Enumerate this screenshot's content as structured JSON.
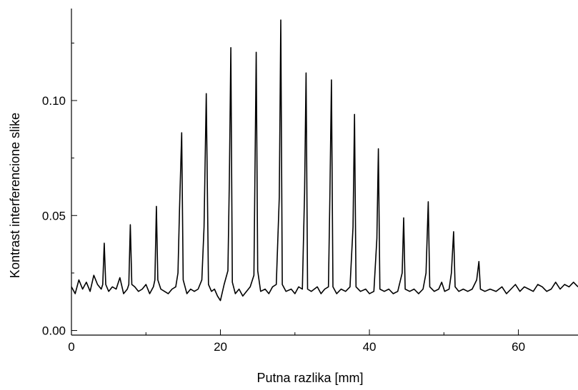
{
  "chart_data": {
    "type": "line",
    "title": "",
    "xlabel": "Putna razlika  [mm]",
    "ylabel": "Kontrast interferencione slike",
    "xlim": [
      0,
      68
    ],
    "ylim": [
      -0.002,
      0.14
    ],
    "xticks": [
      0,
      20,
      40,
      60
    ],
    "xtick_labels": [
      "0",
      "20",
      "40",
      "60"
    ],
    "yticks": [
      0.0,
      0.05,
      0.1
    ],
    "ytick_labels": [
      "0.00",
      "0.05",
      "0.10"
    ],
    "grid": false,
    "legend": "none",
    "line_color": "#000000",
    "series": [
      {
        "points": [
          [
            0.0,
            0.019
          ],
          [
            0.5,
            0.016
          ],
          [
            1.0,
            0.022
          ],
          [
            1.5,
            0.018
          ],
          [
            2.0,
            0.021
          ],
          [
            2.5,
            0.017
          ],
          [
            3.0,
            0.024
          ],
          [
            3.5,
            0.02
          ],
          [
            4.0,
            0.018
          ],
          [
            4.2,
            0.02
          ],
          [
            4.4,
            0.038
          ],
          [
            4.6,
            0.02
          ],
          [
            5.0,
            0.017
          ],
          [
            5.5,
            0.019
          ],
          [
            6.0,
            0.018
          ],
          [
            6.5,
            0.023
          ],
          [
            7.0,
            0.016
          ],
          [
            7.5,
            0.018
          ],
          [
            7.7,
            0.02
          ],
          [
            7.9,
            0.046
          ],
          [
            8.1,
            0.02
          ],
          [
            8.5,
            0.019
          ],
          [
            9.0,
            0.017
          ],
          [
            9.5,
            0.018
          ],
          [
            10.0,
            0.02
          ],
          [
            10.5,
            0.016
          ],
          [
            11.0,
            0.019
          ],
          [
            11.2,
            0.022
          ],
          [
            11.4,
            0.054
          ],
          [
            11.6,
            0.022
          ],
          [
            12.0,
            0.018
          ],
          [
            12.5,
            0.017
          ],
          [
            13.0,
            0.016
          ],
          [
            13.5,
            0.018
          ],
          [
            14.0,
            0.019
          ],
          [
            14.3,
            0.025
          ],
          [
            14.5,
            0.052
          ],
          [
            14.8,
            0.086
          ],
          [
            15.0,
            0.022
          ],
          [
            15.5,
            0.016
          ],
          [
            16.0,
            0.018
          ],
          [
            16.5,
            0.017
          ],
          [
            17.0,
            0.018
          ],
          [
            17.5,
            0.022
          ],
          [
            17.8,
            0.045
          ],
          [
            18.1,
            0.103
          ],
          [
            18.4,
            0.02
          ],
          [
            18.8,
            0.017
          ],
          [
            19.2,
            0.018
          ],
          [
            19.6,
            0.015
          ],
          [
            20.0,
            0.013
          ],
          [
            20.5,
            0.02
          ],
          [
            21.0,
            0.026
          ],
          [
            21.2,
            0.065
          ],
          [
            21.4,
            0.123
          ],
          [
            21.6,
            0.021
          ],
          [
            22.0,
            0.016
          ],
          [
            22.5,
            0.018
          ],
          [
            23.0,
            0.015
          ],
          [
            23.5,
            0.017
          ],
          [
            24.0,
            0.019
          ],
          [
            24.5,
            0.024
          ],
          [
            24.8,
            0.121
          ],
          [
            25.0,
            0.026
          ],
          [
            25.4,
            0.017
          ],
          [
            26.0,
            0.018
          ],
          [
            26.5,
            0.016
          ],
          [
            27.0,
            0.019
          ],
          [
            27.5,
            0.02
          ],
          [
            27.9,
            0.058
          ],
          [
            28.1,
            0.135
          ],
          [
            28.3,
            0.02
          ],
          [
            28.8,
            0.017
          ],
          [
            29.5,
            0.018
          ],
          [
            30.0,
            0.016
          ],
          [
            30.5,
            0.019
          ],
          [
            31.0,
            0.018
          ],
          [
            31.3,
            0.06
          ],
          [
            31.5,
            0.112
          ],
          [
            31.7,
            0.018
          ],
          [
            32.2,
            0.017
          ],
          [
            33.0,
            0.019
          ],
          [
            33.5,
            0.016
          ],
          [
            34.0,
            0.018
          ],
          [
            34.5,
            0.019
          ],
          [
            34.7,
            0.06
          ],
          [
            34.9,
            0.109
          ],
          [
            35.1,
            0.019
          ],
          [
            35.6,
            0.016
          ],
          [
            36.2,
            0.018
          ],
          [
            36.8,
            0.017
          ],
          [
            37.4,
            0.019
          ],
          [
            37.8,
            0.045
          ],
          [
            38.0,
            0.094
          ],
          [
            38.2,
            0.019
          ],
          [
            38.8,
            0.017
          ],
          [
            39.5,
            0.018
          ],
          [
            40.0,
            0.016
          ],
          [
            40.6,
            0.017
          ],
          [
            41.0,
            0.04
          ],
          [
            41.2,
            0.079
          ],
          [
            41.4,
            0.018
          ],
          [
            42.0,
            0.017
          ],
          [
            42.6,
            0.018
          ],
          [
            43.2,
            0.016
          ],
          [
            43.8,
            0.017
          ],
          [
            44.4,
            0.025
          ],
          [
            44.6,
            0.049
          ],
          [
            44.8,
            0.018
          ],
          [
            45.4,
            0.017
          ],
          [
            46.0,
            0.018
          ],
          [
            46.6,
            0.016
          ],
          [
            47.2,
            0.018
          ],
          [
            47.6,
            0.025
          ],
          [
            47.9,
            0.056
          ],
          [
            48.1,
            0.019
          ],
          [
            48.7,
            0.017
          ],
          [
            49.3,
            0.018
          ],
          [
            49.7,
            0.021
          ],
          [
            50.1,
            0.017
          ],
          [
            50.7,
            0.018
          ],
          [
            51.0,
            0.025
          ],
          [
            51.3,
            0.043
          ],
          [
            51.5,
            0.019
          ],
          [
            52.0,
            0.017
          ],
          [
            52.6,
            0.018
          ],
          [
            53.2,
            0.017
          ],
          [
            53.8,
            0.018
          ],
          [
            54.4,
            0.022
          ],
          [
            54.7,
            0.03
          ],
          [
            54.9,
            0.018
          ],
          [
            55.5,
            0.017
          ],
          [
            56.2,
            0.018
          ],
          [
            57.0,
            0.017
          ],
          [
            57.8,
            0.019
          ],
          [
            58.4,
            0.016
          ],
          [
            59.0,
            0.018
          ],
          [
            59.6,
            0.02
          ],
          [
            60.2,
            0.017
          ],
          [
            60.8,
            0.019
          ],
          [
            61.4,
            0.018
          ],
          [
            62.0,
            0.017
          ],
          [
            62.6,
            0.02
          ],
          [
            63.2,
            0.019
          ],
          [
            63.8,
            0.017
          ],
          [
            64.4,
            0.018
          ],
          [
            65.0,
            0.021
          ],
          [
            65.6,
            0.018
          ],
          [
            66.2,
            0.02
          ],
          [
            66.8,
            0.019
          ],
          [
            67.4,
            0.021
          ],
          [
            68.0,
            0.019
          ]
        ]
      }
    ]
  }
}
